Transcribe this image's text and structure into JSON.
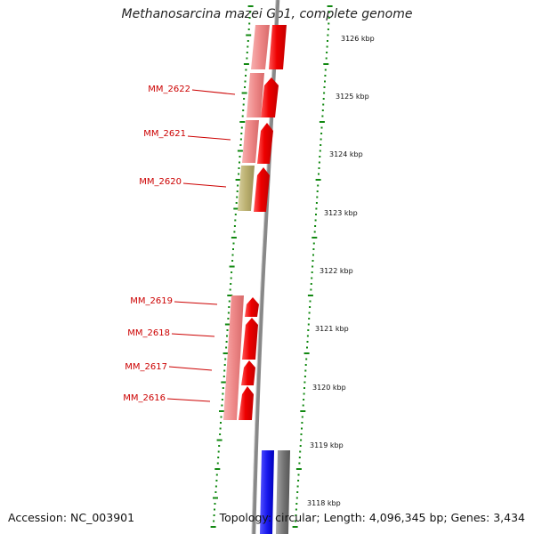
{
  "title": "Methanosarcina mazei Go1, complete genome",
  "accession": "Accession: NC_003901",
  "summary": "Topology: circular; Length: 4,096,345 bp; Genes: 3,434",
  "colors": {
    "gene_label": "#cc0000",
    "tick_dot": "#118811",
    "backbone": "#888888",
    "forward_cds": "#ee1111",
    "reverse_cds_light": "#ee8888",
    "olive_feature": "#bbb070",
    "blue_feature": "#1a1aee",
    "gray_feature": "#777777"
  },
  "scale": {
    "unit": "kbp",
    "labels": [
      "3126 kbp",
      "3125 kbp",
      "3124 kbp",
      "3123 kbp",
      "3122 kbp",
      "3121 kbp",
      "3120 kbp",
      "3119 kbp",
      "3118 kbp"
    ]
  },
  "genes": [
    "MM_2622",
    "MM_2621",
    "MM_2620",
    "MM_2619",
    "MM_2618",
    "MM_2617",
    "MM_2616"
  ]
}
